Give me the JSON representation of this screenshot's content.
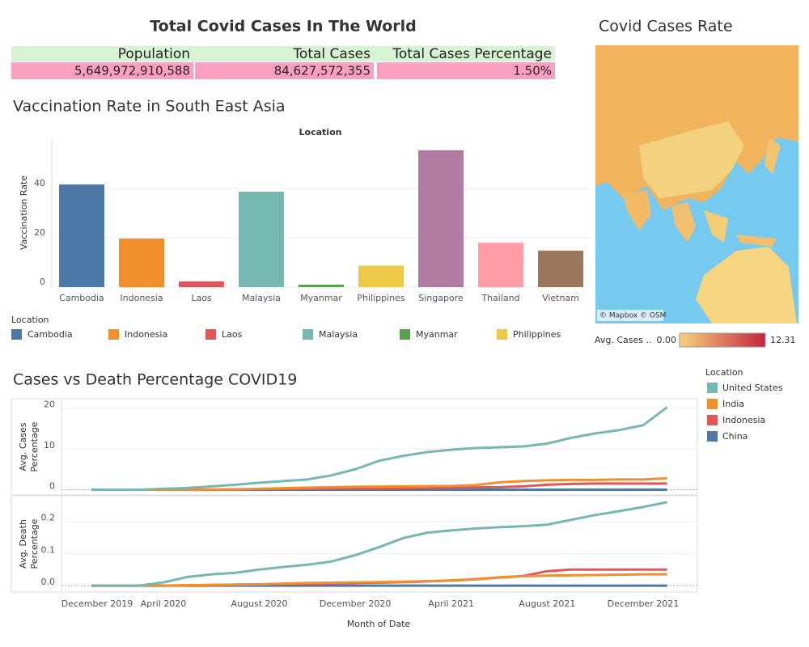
{
  "kpi": {
    "title": "Total Covid Cases In The World",
    "headers": [
      "Population",
      "Total Cases",
      "Total Cases Percentage"
    ],
    "values": [
      "5,649,972,910,588",
      "84,627,572,355",
      "1.50%"
    ]
  },
  "map": {
    "title": "Covid Cases Rate",
    "credit": "© Mapbox © OSM",
    "legend_title": "Avg. Cases ..",
    "legend_ticks": [
      {
        "value": 0,
        "label": "0.00"
      },
      {
        "value": 12.31,
        "label": "12.31"
      }
    ],
    "legend_colors": [
      "#f7d27c",
      "#c4253f"
    ]
  },
  "chart_data": [
    {
      "type": "bar",
      "title": "Vaccination Rate in South East Asia",
      "x_label": "Location",
      "y_label": "Vaccination Rate",
      "legend_title": "Location",
      "categories": [
        "Cambodia",
        "Indonesia",
        "Laos",
        "Malaysia",
        "Myanmar",
        "Philippines",
        "Singapore",
        "Thailand",
        "Vietnam"
      ],
      "values": [
        41.6,
        19.7,
        2.3,
        38.7,
        1,
        8.7,
        55.5,
        18,
        14.8
      ],
      "colors": [
        "#4e79a7",
        "#f28e2b",
        "#e15759",
        "#76b7b2",
        "#59a14f",
        "#edc948",
        "#b07aa1",
        "#ff9da7",
        "#9c755f"
      ],
      "ylim": [
        0,
        60
      ],
      "yticks": [
        0,
        20,
        40
      ],
      "grid": true
    },
    {
      "type": "line",
      "title": "Cases vs Death Percentage COVID19",
      "y_label": "Avg. Cases Percentage",
      "legend_title": "Location",
      "x": [
        "2020-01",
        "2020-02",
        "2020-03",
        "2020-04",
        "2020-05",
        "2020-06",
        "2020-07",
        "2020-08",
        "2020-09",
        "2020-10",
        "2020-11",
        "2020-12",
        "2021-01",
        "2021-02",
        "2021-03",
        "2021-04",
        "2021-05",
        "2021-06",
        "2021-07",
        "2021-08",
        "2021-09",
        "2021-10",
        "2021-11",
        "2021-12",
        "2022-01"
      ],
      "series": [
        {
          "name": "United States",
          "color": "#76b7b2",
          "values": [
            0,
            0,
            0,
            0.2,
            0.4,
            0.8,
            1.2,
            1.7,
            2.1,
            2.5,
            3.5,
            5,
            7.1,
            8.3,
            9.2,
            9.8,
            10.2,
            10.4,
            10.6,
            11.3,
            12.7,
            13.8,
            14.6,
            15.8,
            20.2
          ]
        },
        {
          "name": "India",
          "color": "#f28e2b",
          "values": [
            0,
            0,
            0,
            0,
            0,
            0.05,
            0.1,
            0.2,
            0.35,
            0.5,
            0.6,
            0.7,
            0.75,
            0.8,
            0.85,
            0.9,
            1.1,
            1.8,
            2.1,
            2.3,
            2.4,
            2.4,
            2.5,
            2.5,
            2.8
          ]
        },
        {
          "name": "Indonesia",
          "color": "#e15759",
          "values": [
            0,
            0,
            0,
            0,
            0,
            0,
            0.05,
            0.1,
            0.15,
            0.2,
            0.25,
            0.3,
            0.35,
            0.4,
            0.45,
            0.5,
            0.55,
            0.6,
            0.8,
            1.2,
            1.4,
            1.5,
            1.5,
            1.5,
            1.5
          ]
        },
        {
          "name": "China",
          "color": "#4e79a7",
          "values": [
            0,
            0,
            0,
            0,
            0,
            0,
            0,
            0,
            0,
            0,
            0,
            0,
            0,
            0,
            0,
            0,
            0,
            0,
            0,
            0,
            0,
            0,
            0,
            0,
            0
          ]
        }
      ],
      "ylim": [
        -1.3,
        22.3
      ],
      "yticks": [
        0,
        10,
        20
      ],
      "grid": true
    },
    {
      "type": "line",
      "y_label": "Avg. Death Percentage",
      "x_label": "Month of Date",
      "x": [
        "2020-01",
        "2020-02",
        "2020-03",
        "2020-04",
        "2020-05",
        "2020-06",
        "2020-07",
        "2020-08",
        "2020-09",
        "2020-10",
        "2020-11",
        "2020-12",
        "2021-01",
        "2021-02",
        "2021-03",
        "2021-04",
        "2021-05",
        "2021-06",
        "2021-07",
        "2021-08",
        "2021-09",
        "2021-10",
        "2021-11",
        "2021-12",
        "2022-01"
      ],
      "series": [
        {
          "name": "United States",
          "color": "#76b7b2",
          "values": [
            0,
            0,
            0,
            0.01,
            0.027,
            0.035,
            0.04,
            0.05,
            0.058,
            0.065,
            0.075,
            0.095,
            0.12,
            0.148,
            0.165,
            0.172,
            0.178,
            0.182,
            0.185,
            0.19,
            0.205,
            0.22,
            0.232,
            0.245,
            0.26
          ]
        },
        {
          "name": "India",
          "color": "#f28e2b",
          "values": [
            0,
            0,
            0,
            0,
            0.001,
            0.002,
            0.003,
            0.004,
            0.006,
            0.008,
            0.009,
            0.01,
            0.011,
            0.012,
            0.014,
            0.016,
            0.019,
            0.026,
            0.029,
            0.031,
            0.032,
            0.033,
            0.034,
            0.035,
            0.035
          ]
        },
        {
          "name": "Indonesia",
          "color": "#e15759",
          "values": [
            0,
            0,
            0,
            0,
            0.001,
            0.002,
            0.003,
            0.004,
            0.005,
            0.006,
            0.007,
            0.008,
            0.009,
            0.011,
            0.013,
            0.016,
            0.02,
            0.025,
            0.03,
            0.045,
            0.05,
            0.05,
            0.05,
            0.05,
            0.05
          ]
        },
        {
          "name": "China",
          "color": "#4e79a7",
          "values": [
            0,
            0,
            0,
            0,
            0,
            0,
            0,
            0,
            0,
            0,
            0,
            0,
            0,
            0,
            0,
            0,
            0,
            0,
            0,
            0,
            0,
            0,
            0,
            0,
            0
          ]
        }
      ],
      "ylim": [
        -0.02,
        0.28
      ],
      "yticks": [
        {
          "value": 0,
          "label": "0.0"
        },
        0.1,
        0.2
      ],
      "xticks": [
        {
          "value": "2019-12",
          "label": "December 2019"
        },
        {
          "value": "2020-04",
          "label": "April 2020"
        },
        {
          "value": "2020-08",
          "label": "August 2020"
        },
        {
          "value": "2020-12",
          "label": "December 2020"
        },
        {
          "value": "2021-04",
          "label": "April 2021"
        },
        {
          "value": "2021-08",
          "label": "August 2021"
        },
        {
          "value": "2021-12",
          "label": "December 2021"
        }
      ],
      "grid": true
    }
  ]
}
